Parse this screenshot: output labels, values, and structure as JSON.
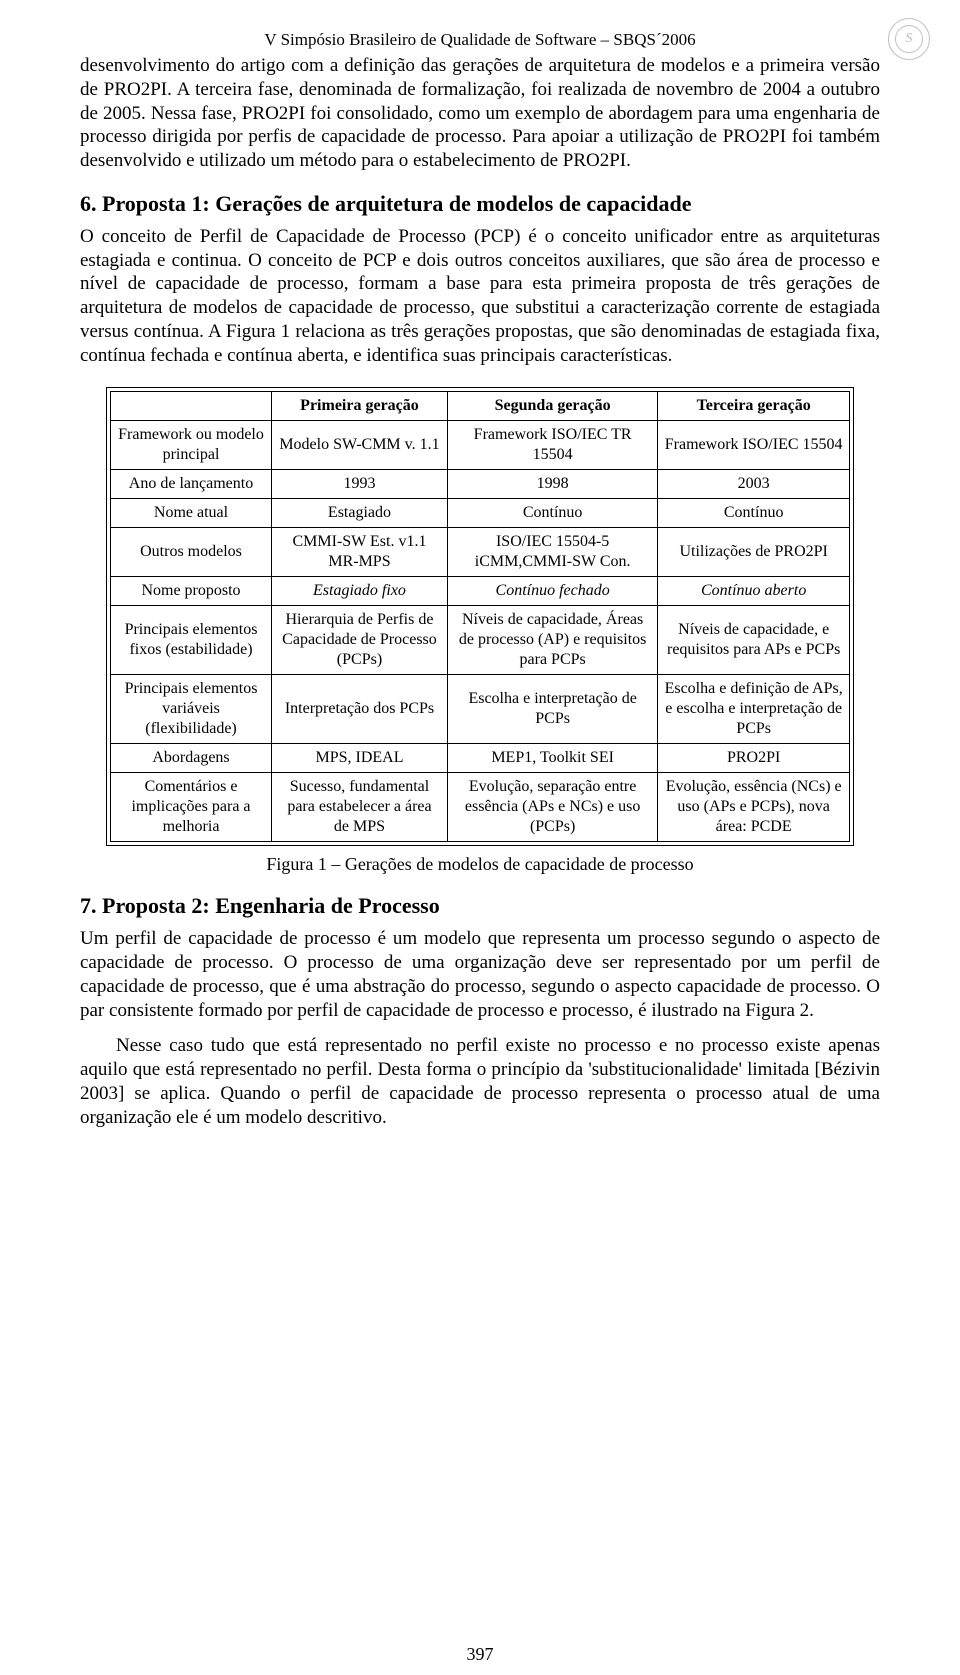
{
  "header": {
    "title": "V Simpósio Brasileiro de Qualidade de Software – SBQS´2006"
  },
  "para1": "desenvolvimento do artigo com a definição das gerações de arquitetura de modelos e a primeira versão de PRO2PI. A terceira fase, denominada de formalização, foi realizada de novembro de 2004 a outubro de 2005. Nessa fase, PRO2PI foi consolidado, como um exemplo de abordagem para uma engenharia de processo dirigida por perfis de capacidade de processo. Para apoiar a utilização de PRO2PI foi também desenvolvido e utilizado um método para o estabelecimento de PRO2PI.",
  "section6": "6. Proposta 1: Gerações de arquitetura de modelos de capacidade",
  "para2": "O conceito de Perfil de Capacidade de Processo (PCP) é o conceito unificador entre as arquiteturas estagiada e continua. O conceito de PCP e dois outros conceitos auxiliares, que são área de processo e nível de capacidade de processo, formam a base para esta primeira proposta de três gerações de arquitetura de modelos de capacidade de processo, que substitui a caracterização corrente de estagiada versus contínua. A Figura 1 relaciona as três gerações propostas, que são denominadas de estagiada fixa, contínua fechada e contínua aberta, e identifica suas principais características.",
  "table": {
    "headers": [
      "",
      "Primeira geração",
      "Segunda geração",
      "Terceira geração"
    ],
    "rows": [
      {
        "label": "Framework ou modelo principal",
        "c1": "Modelo SW-CMM v. 1.1",
        "c2": "Framework ISO/IEC TR 15504",
        "c3": "Framework ISO/IEC 15504"
      },
      {
        "label": "Ano de lançamento",
        "c1": "1993",
        "c2": "1998",
        "c3": "2003"
      },
      {
        "label": "Nome atual",
        "c1": "Estagiado",
        "c2": "Contínuo",
        "c3": "Contínuo"
      },
      {
        "label": "Outros modelos",
        "c1": "CMMI-SW Est. v1.1 MR-MPS",
        "c2": "ISO/IEC 15504-5 iCMM,CMMI-SW Con.",
        "c3": "Utilizações de PRO2PI"
      },
      {
        "label": "Nome proposto",
        "c1": "Estagiado fixo",
        "c2": "Contínuo fechado",
        "c3": "Contínuo aberto",
        "italic": true
      },
      {
        "label": "Principais elementos fixos (estabilidade)",
        "c1": "Hierarquia de Perfis de Capacidade de Processo (PCPs)",
        "c2": "Níveis de capacidade, Áreas de processo (AP) e requisitos para PCPs",
        "c3": "Níveis de capacidade, e requisitos para APs e PCPs"
      },
      {
        "label": "Principais elementos variáveis (flexibilidade)",
        "c1": "Interpretação dos PCPs",
        "c2": "Escolha e interpretação de PCPs",
        "c3": "Escolha e definição de APs, e escolha e interpretação de PCPs"
      },
      {
        "label": "Abordagens",
        "c1": "MPS, IDEAL",
        "c2": "MEP1, Toolkit SEI",
        "c3": "PRO2PI"
      },
      {
        "label": "Comentários e implicações para a melhoria",
        "c1": "Sucesso, fundamental para estabelecer a área de MPS",
        "c2": "Evolução, separação entre essência (APs e NCs) e uso (PCPs)",
        "c3": "Evolução, essência (NCs) e uso (APs e PCPs), nova área: PCDE"
      }
    ]
  },
  "figcaption": "Figura 1 – Gerações de modelos de capacidade de processo",
  "section7": "7. Proposta 2: Engenharia de Processo",
  "para3": "Um perfil de capacidade de processo é um modelo que representa um processo segundo o aspecto de capacidade de processo. O processo de uma organização deve ser representado por um perfil de capacidade de processo, que é uma abstração do processo, segundo o aspecto capacidade de processo. O par consistente formado por perfil de capacidade de processo e processo, é ilustrado na Figura 2.",
  "para4": "Nesse caso tudo que está representado no perfil existe no processo e no processo existe apenas aquilo que está representado no perfil. Desta forma o princípio da 'substitucionalidade' limitada [Bézivin 2003] se aplica. Quando o perfil de capacidade de processo representa o processo atual de uma organização ele é um modelo descritivo.",
  "pagenum": "397"
}
